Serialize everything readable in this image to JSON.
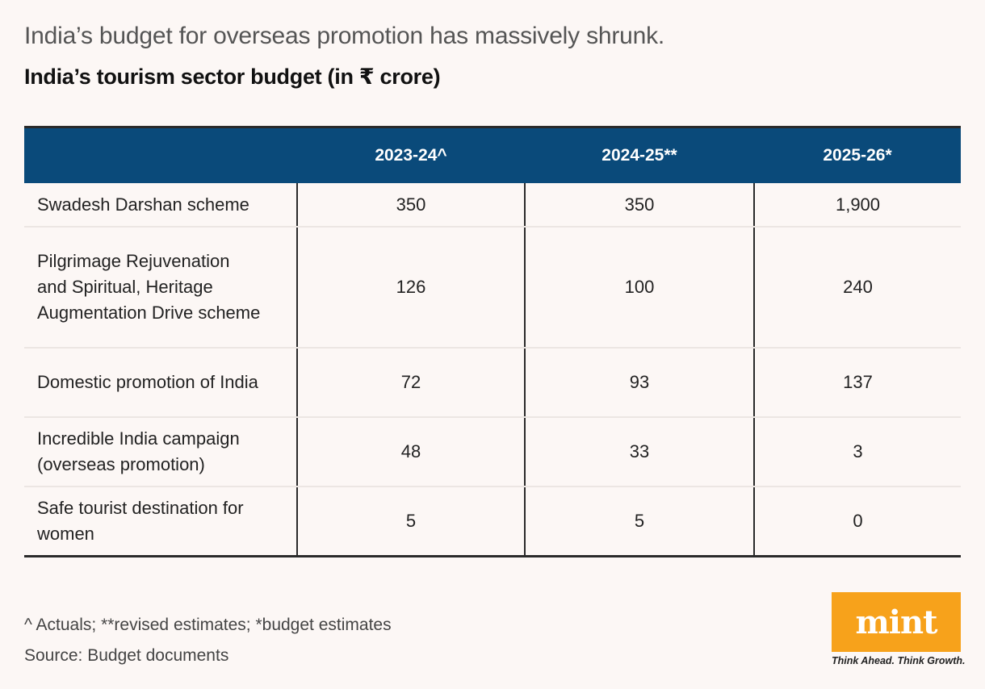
{
  "header": {
    "subtitle": "India’s budget for overseas promotion has massively shrunk.",
    "title": "India’s tourism sector budget (in ₹ crore)"
  },
  "chart_data": {
    "type": "table",
    "columns": [
      "",
      "2023-24^",
      "2024-25**",
      "2025-26*"
    ],
    "rows": [
      {
        "label": "Swadesh Darshan scheme",
        "values": [
          "350",
          "350",
          "1,900"
        ]
      },
      {
        "label": "Pilgrimage Rejuvenation and Spiritual, Heritage Augmentation Drive scheme",
        "values": [
          "126",
          "100",
          "240"
        ]
      },
      {
        "label": "Domestic promotion of India",
        "values": [
          "72",
          "93",
          "137"
        ]
      },
      {
        "label": "Incredible India campaign (overseas promotion)",
        "values": [
          "48",
          "33",
          "3"
        ]
      },
      {
        "label": "Safe tourist destination for women",
        "values": [
          "5",
          "5",
          "0"
        ]
      }
    ]
  },
  "notes": {
    "footnote": "^ Actuals; **revised estimates; *budget estimates",
    "source": "Source: Budget documents"
  },
  "brand": {
    "logo": "mint",
    "tagline": "Think Ahead. Think Growth.",
    "logo_color": "#f7a21b"
  },
  "colors": {
    "header_bg": "#0a4a7a",
    "page_bg": "#fcf7f5"
  }
}
